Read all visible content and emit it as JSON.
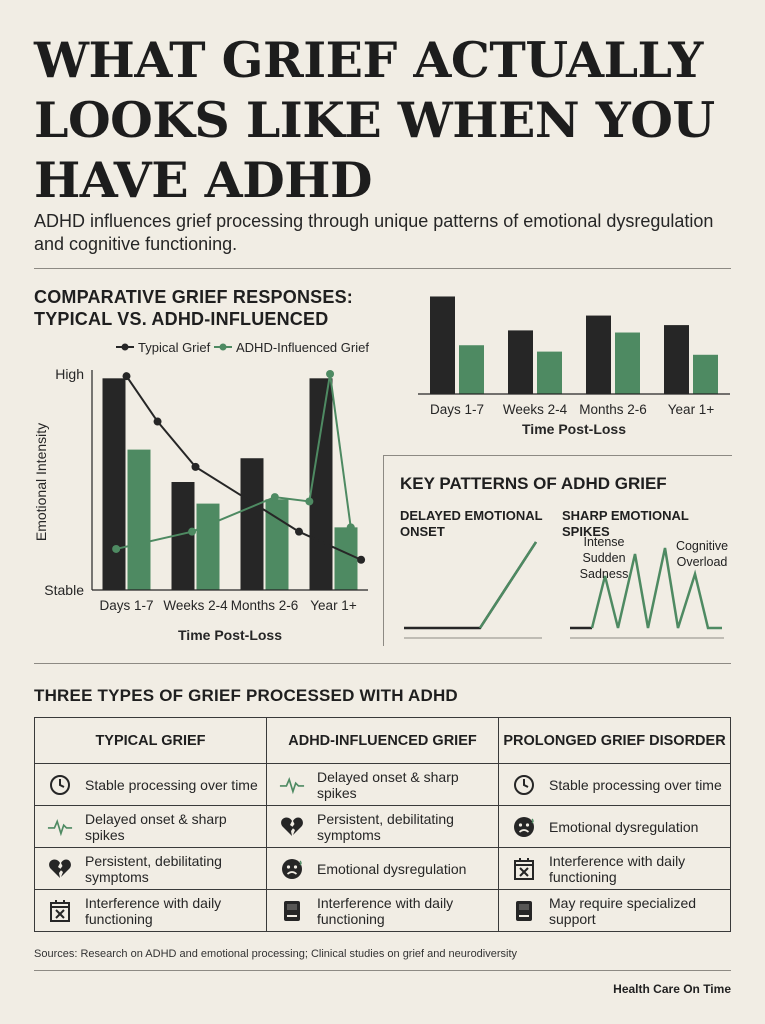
{
  "title": "WHAT GRIEF ACTUALLY LOOKS LIKE WHEN YOU HAVE ADHD",
  "subtitle": "ADHD influences grief processing through unique patterns of emotional dysregulation and cognitive functioning.",
  "colors": {
    "background": "#f1ede4",
    "typical": "#262626",
    "adhd": "#4e8a62",
    "rule": "#8d8a83"
  },
  "comparison_heading": "COMPARATIVE GRIEF RESPONSES: TYPICAL VS. ADHD-INFLUENCED",
  "chart_data": [
    {
      "type": "bar",
      "title": "",
      "categories": [
        "Days 1-7",
        "Weeks 2-4",
        "Months 2-6",
        "Year 1+"
      ],
      "series": [
        {
          "name": "",
          "values": [
            9.2,
            6.0,
            7.4,
            6.5
          ]
        },
        {
          "name": "",
          "values": [
            4.6,
            4.0,
            5.8,
            3.7
          ]
        }
      ],
      "xlabel": "Time Post-Loss",
      "ylabel": "",
      "ylim": [
        0,
        10
      ]
    },
    {
      "type": "bar",
      "title": "",
      "categories": [
        "Days 1-7",
        "Weeks 2-4",
        "Months 2-6",
        "Year 1+"
      ],
      "series": [
        {
          "name": "Typical Grief",
          "values": [
            9.8,
            5.0,
            6.1,
            9.8
          ]
        },
        {
          "name": "ADHD-Influenced Grief",
          "values": [
            6.5,
            4.0,
            4.2,
            2.9
          ]
        }
      ],
      "lines": [
        {
          "name": "Typical Grief",
          "values": [
            9.9,
            7.8,
            5.7,
            2.7,
            1.4
          ],
          "x_positions": [
            0,
            0.45,
            1.0,
            2.5,
            3.4
          ]
        },
        {
          "name": "ADHD-Influenced Grief",
          "values": [
            1.9,
            2.7,
            4.3,
            4.1,
            10.0,
            2.9
          ],
          "x_positions": [
            -0.15,
            0.95,
            2.15,
            2.65,
            2.95,
            3.25
          ]
        }
      ],
      "xlabel": "Time Post-Loss",
      "ylabel": "Emotional Intensity",
      "ytick_labels": [
        "Stable",
        "High"
      ],
      "legend": "top",
      "ylim": [
        0,
        10
      ]
    }
  ],
  "key_patterns": {
    "title": "KEY PATTERNS OF ADHD GRIEF",
    "delayed_label": "DELAYED EMOTIONAL ONSET",
    "spikes_label": "SHARP EMOTIONAL SPIKES",
    "annotation_1": "Intense Sudden Sadness",
    "annotation_2": "Cognitive Overload"
  },
  "types_heading": "THREE TYPES OF GRIEF PROCESSED WITH ADHD",
  "table": {
    "headers": [
      "TYPICAL GRIEF",
      "ADHD-INFLUENCED GRIEF",
      "PROLONGED GRIEF DISORDER"
    ],
    "rows": [
      [
        {
          "icon": "clock-icon",
          "text": "Stable processing over time"
        },
        {
          "icon": "heartbeat-icon",
          "text": "Delayed onset & sharp spikes"
        },
        {
          "icon": "clock-icon",
          "text": "Stable processing over time"
        }
      ],
      [
        {
          "icon": "heartbeat-icon",
          "text": "Delayed onset & sharp spikes"
        },
        {
          "icon": "broken-heart-icon",
          "text": "Persistent, debilitating symptoms"
        },
        {
          "icon": "distressed-face-icon",
          "text": "Emotional dysregulation"
        }
      ],
      [
        {
          "icon": "broken-heart-icon",
          "text": "Persistent, debilitating symptoms"
        },
        {
          "icon": "distressed-face-icon",
          "text": "Emotional dysregulation"
        },
        {
          "icon": "calendar-x-icon",
          "text": "Interference with daily functioning"
        }
      ],
      [
        {
          "icon": "calendar-x-icon",
          "text": "Interference with daily functioning"
        },
        {
          "icon": "book-icon",
          "text": "Interference with daily functioning"
        },
        {
          "icon": "book-icon",
          "text": "May require specialized support"
        }
      ]
    ]
  },
  "sources": "Sources: Research on ADHD and emotional processing; Clinical studies on grief and neurodiversity",
  "footer": "Health Care On Time"
}
